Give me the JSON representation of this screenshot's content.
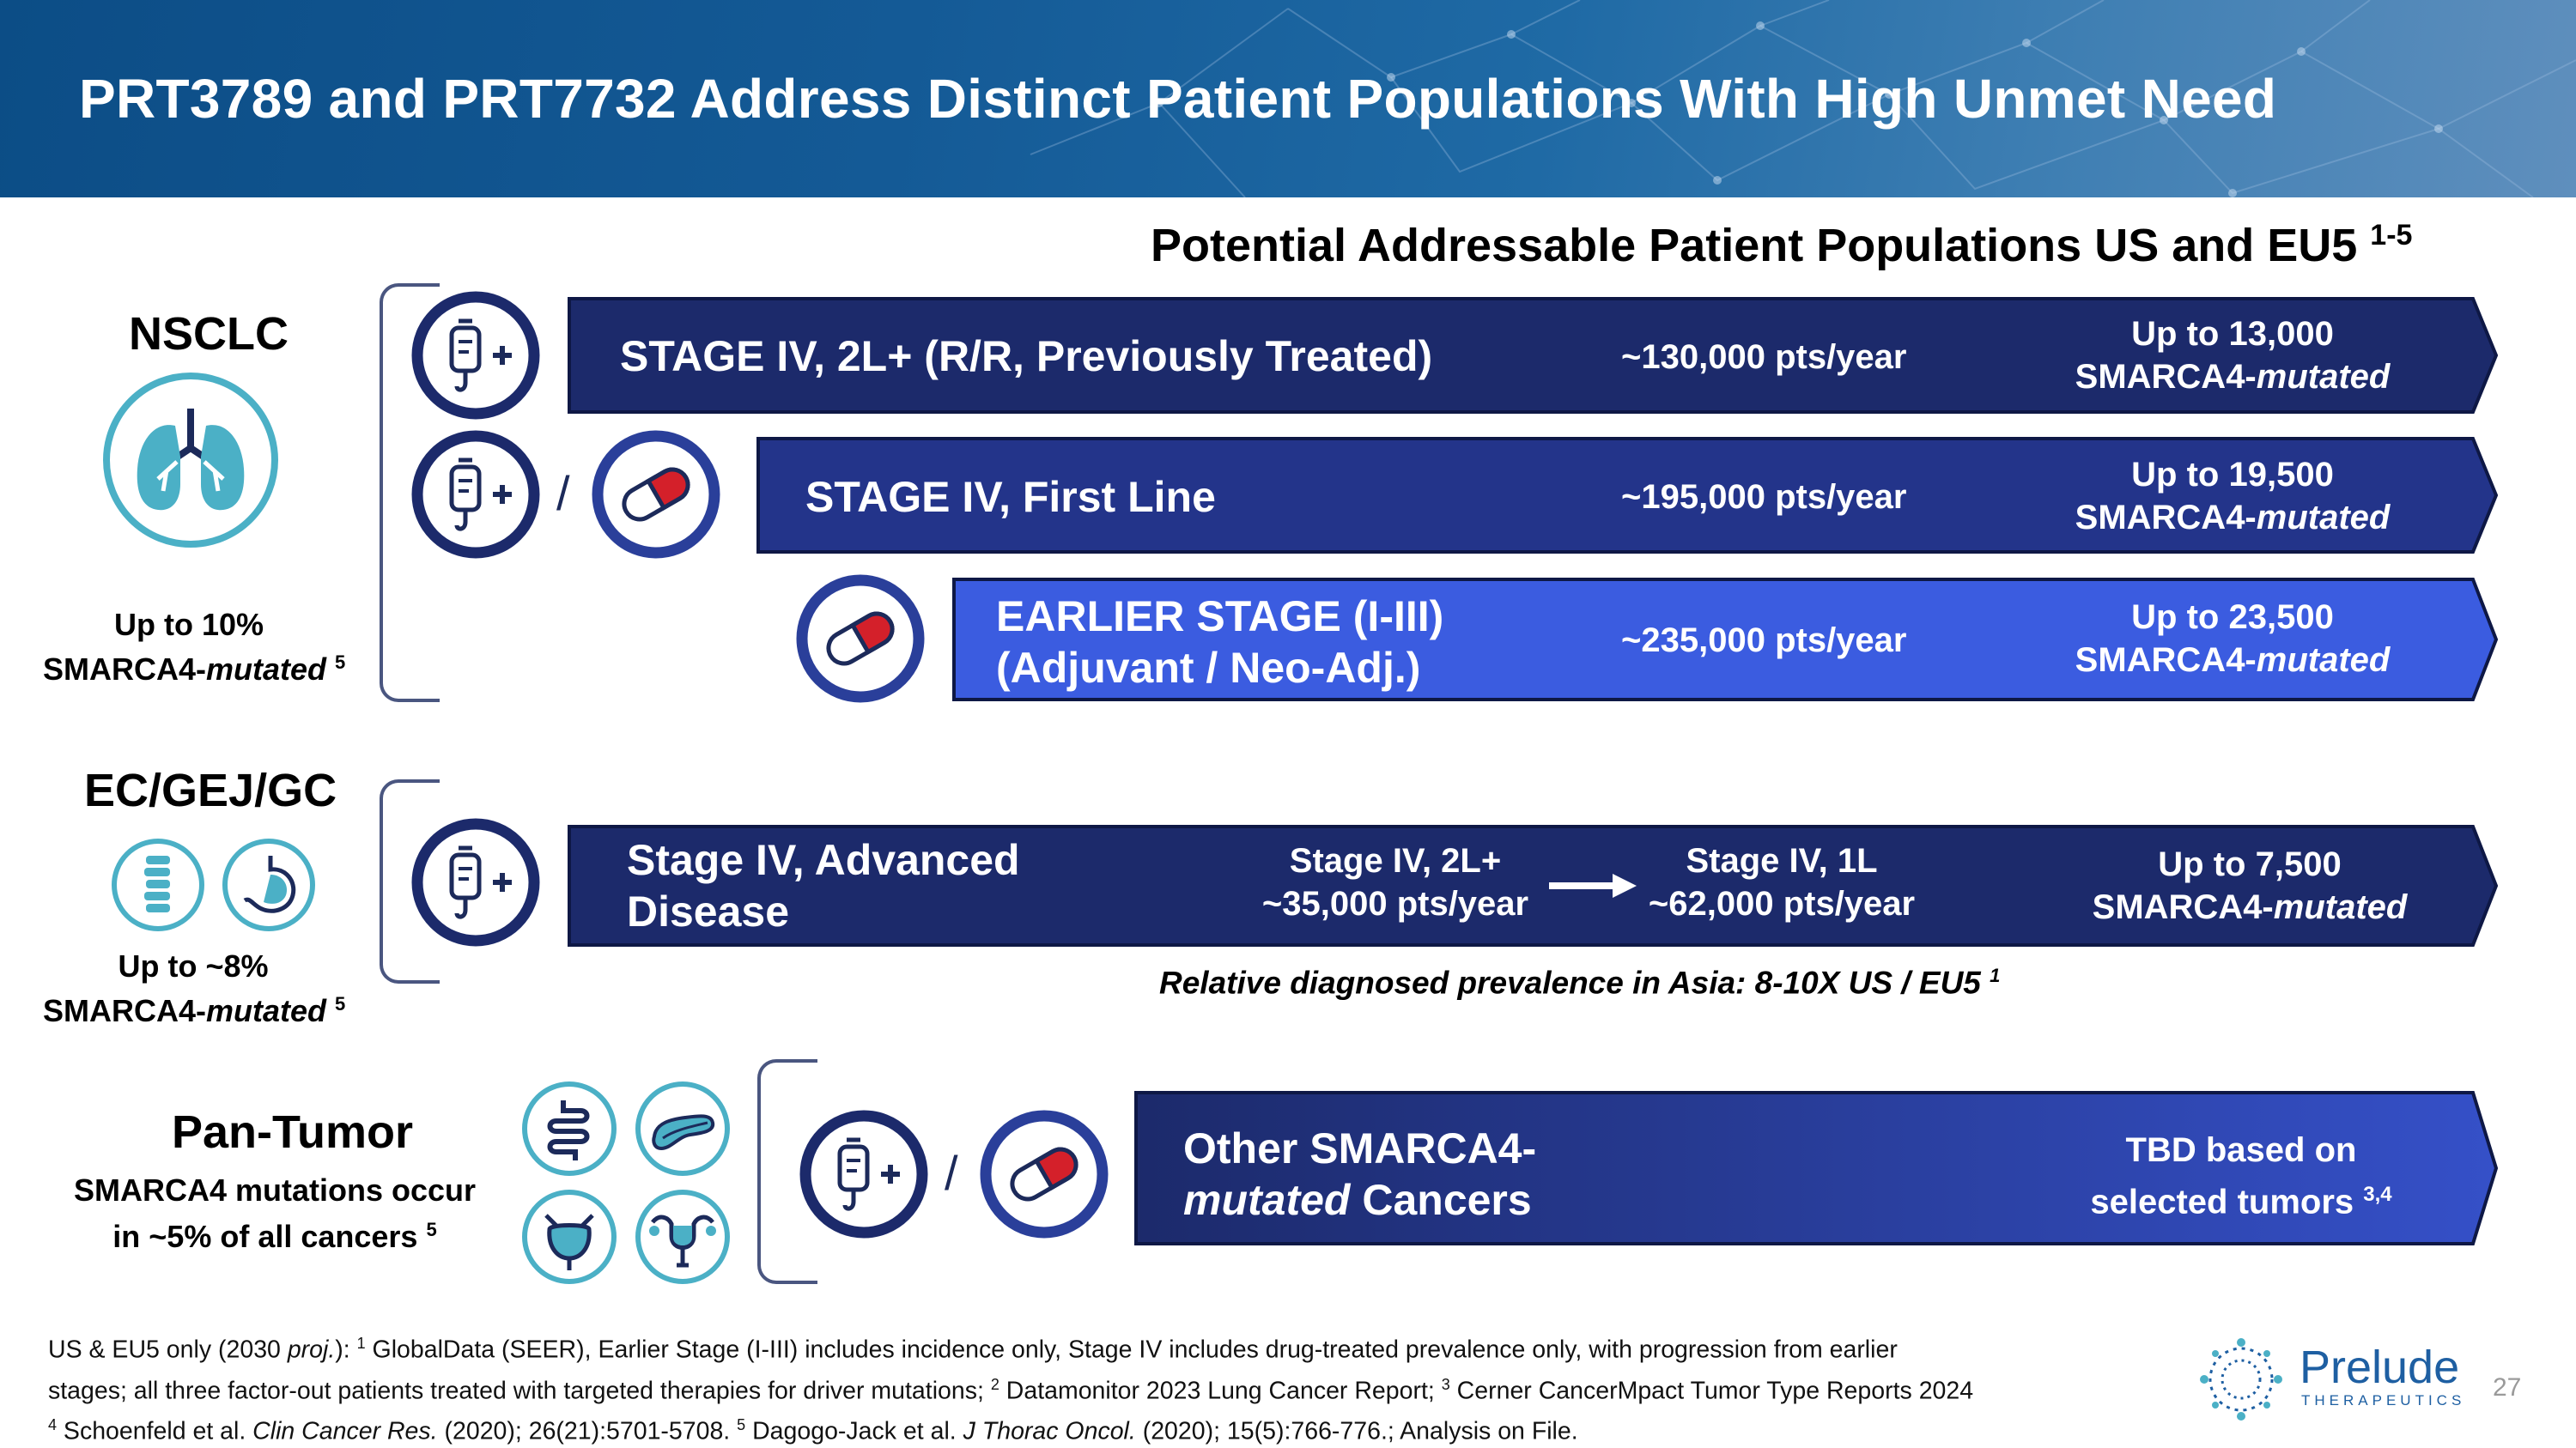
{
  "header": {
    "title": "PRT3789 and PRT7732 Address Distinct Patient Populations With High Unmet Need"
  },
  "subtitle": {
    "text": "Potential Addressable Patient Populations US and EU5 ",
    "sup": "1-5"
  },
  "nsclc": {
    "title": "NSCLC",
    "note_line1": "Up to 10%",
    "note_line2_prefix": "SMARCA4-",
    "note_line2_italic": "mutated",
    "note_sup": "5",
    "rows": [
      {
        "label": "STAGE IV, 2L+ (R/R, Previously Treated)",
        "pts": "~130,000 pts/year",
        "up_to": "Up to 13,000",
        "mut_prefix": "SMARCA4-",
        "mut_italic": "mutated"
      },
      {
        "label": "STAGE IV, First Line",
        "pts": "~195,000 pts/year",
        "up_to": "Up to 19,500",
        "mut_prefix": "SMARCA4-",
        "mut_italic": "mutated"
      },
      {
        "label_line1": "EARLIER STAGE (I-III)",
        "label_line2": "(Adjuvant / Neo-Adj.)",
        "pts": "~235,000 pts/year",
        "up_to": "Up to 23,500",
        "mut_prefix": "SMARCA4-",
        "mut_italic": "mutated"
      }
    ]
  },
  "ec": {
    "title": "EC/GEJ/GC",
    "note_line1": "Up to ~8%",
    "note_line2_prefix": "SMARCA4-",
    "note_line2_italic": "mutated",
    "note_sup": "5",
    "row": {
      "label_line1": "Stage IV, Advanced",
      "label_line2": "Disease",
      "from_line1": "Stage IV, 2L+",
      "from_line2": "~35,000 pts/year",
      "to_line1": "Stage IV, 1L",
      "to_line2": "~62,000 pts/year",
      "up_to": "Up to 7,500",
      "mut_prefix": "SMARCA4-",
      "mut_italic": "mutated"
    },
    "asia_note": "Relative diagnosed prevalence in Asia:  8-10X US / EU5 ",
    "asia_sup": "1"
  },
  "pan": {
    "title": "Pan-Tumor",
    "note_line1": "SMARCA4 mutations occur",
    "note_line2": "in ~5% of all cancers ",
    "note_sup": "5",
    "row": {
      "label_line1": "Other SMARCA4-",
      "label_line2_italic": "mutated",
      "label_line2_rest": " Cancers",
      "tbd_line1": "TBD based on",
      "tbd_line2": "selected tumors ",
      "tbd_sup": "3,4"
    }
  },
  "slash": "/",
  "icons": {
    "iv_bag_plus": "iv-bag-plus-icon",
    "capsule": "capsule-icon",
    "lungs": "lungs-icon",
    "esophagus": "esophagus-icon",
    "stomach": "stomach-icon",
    "intestine": "intestine-icon",
    "pancreas": "pancreas-icon",
    "bladder": "bladder-icon",
    "uterus": "uterus-icon",
    "arrow": "right-arrow-icon"
  },
  "footnotes": {
    "l1_a": "US & EU5 only (2030 ",
    "l1_proj": "proj.",
    "l1_b": "): ",
    "s1": "1",
    "l1_c": " GlobalData (SEER), Earlier Stage (I-III) includes incidence only, Stage IV includes drug-treated prevalence only, with progression from earlier",
    "l2_a": "stages; all three factor-out patients treated with targeted therapies for driver mutations; ",
    "s2": "2",
    "l2_b": " Datamonitor 2023 Lung Cancer Report; ",
    "s3": "3",
    "l2_c": " Cerner CancerMpact Tumor Type Reports 2024",
    "s4": "4",
    "l3_a": "  Schoenfeld et al. ",
    "l3_journal1": "Clin Cancer Res.",
    "l3_b": " (2020); 26(21):5701-5708. ",
    "s5": "5",
    "l3_c": " Dagogo-Jack et al. ",
    "l3_journal2": "J Thorac Oncol.",
    "l3_d": " (2020); 15(5):766-776.; Analysis on File."
  },
  "logo": {
    "name": "Prelude",
    "sub": "THERAPEUTICS"
  },
  "page_number": "27",
  "colors": {
    "navy": "#1c2a6b",
    "mid_blue": "#2a3f9a",
    "bright_blue": "#3b5ce0",
    "teal": "#4bb0c6",
    "capsule_red": "#d4202a"
  }
}
